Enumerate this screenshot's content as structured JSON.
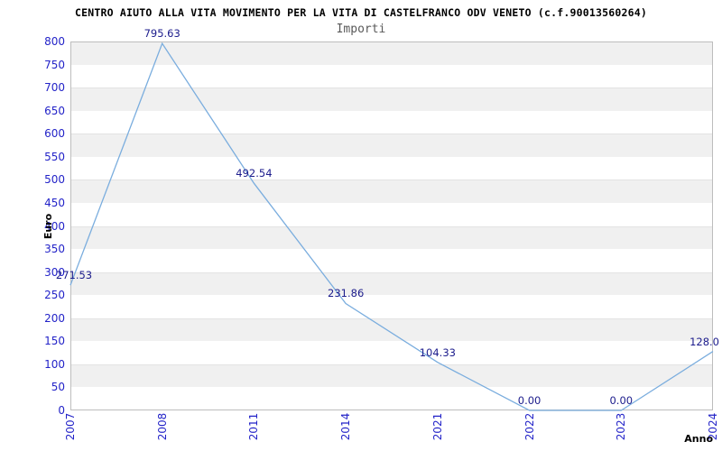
{
  "header": {
    "title": "CENTRO AIUTO ALLA VITA MOVIMENTO PER LA VITA DI CASTELFRANCO ODV VENETO (c.f.90013560264)",
    "subtitle": "Importi"
  },
  "chart_data": {
    "type": "line",
    "title": "CENTRO AIUTO ALLA VITA MOVIMENTO PER LA VITA DI CASTELFRANCO ODV VENETO (c.f.90013560264)",
    "subtitle": "Importi",
    "xlabel": "Anno",
    "ylabel": "Euro",
    "categories": [
      "2007",
      "2008",
      "2011",
      "2014",
      "2021",
      "2022",
      "2023",
      "2024"
    ],
    "values": [
      271.53,
      795.63,
      492.54,
      231.86,
      104.33,
      0.0,
      0.0,
      128.0
    ],
    "point_labels": [
      "271.53",
      "795.63",
      "492.54",
      "231.86",
      "104.33",
      "0.00",
      "0.00",
      "128.0"
    ],
    "ylim": [
      0,
      800
    ],
    "ytick_step": 50,
    "grid": "horizontal-alternating-bands",
    "legend_position": "none",
    "colors": {
      "line": "#7aadde",
      "tick_labels": "#2323c8",
      "point_labels": "#1c1c8c",
      "band": "#f0f0f0",
      "band_border": "#e3e3e3",
      "plot_border": "#bdbdbd",
      "title": "#000000",
      "subtitle": "#595959"
    }
  }
}
